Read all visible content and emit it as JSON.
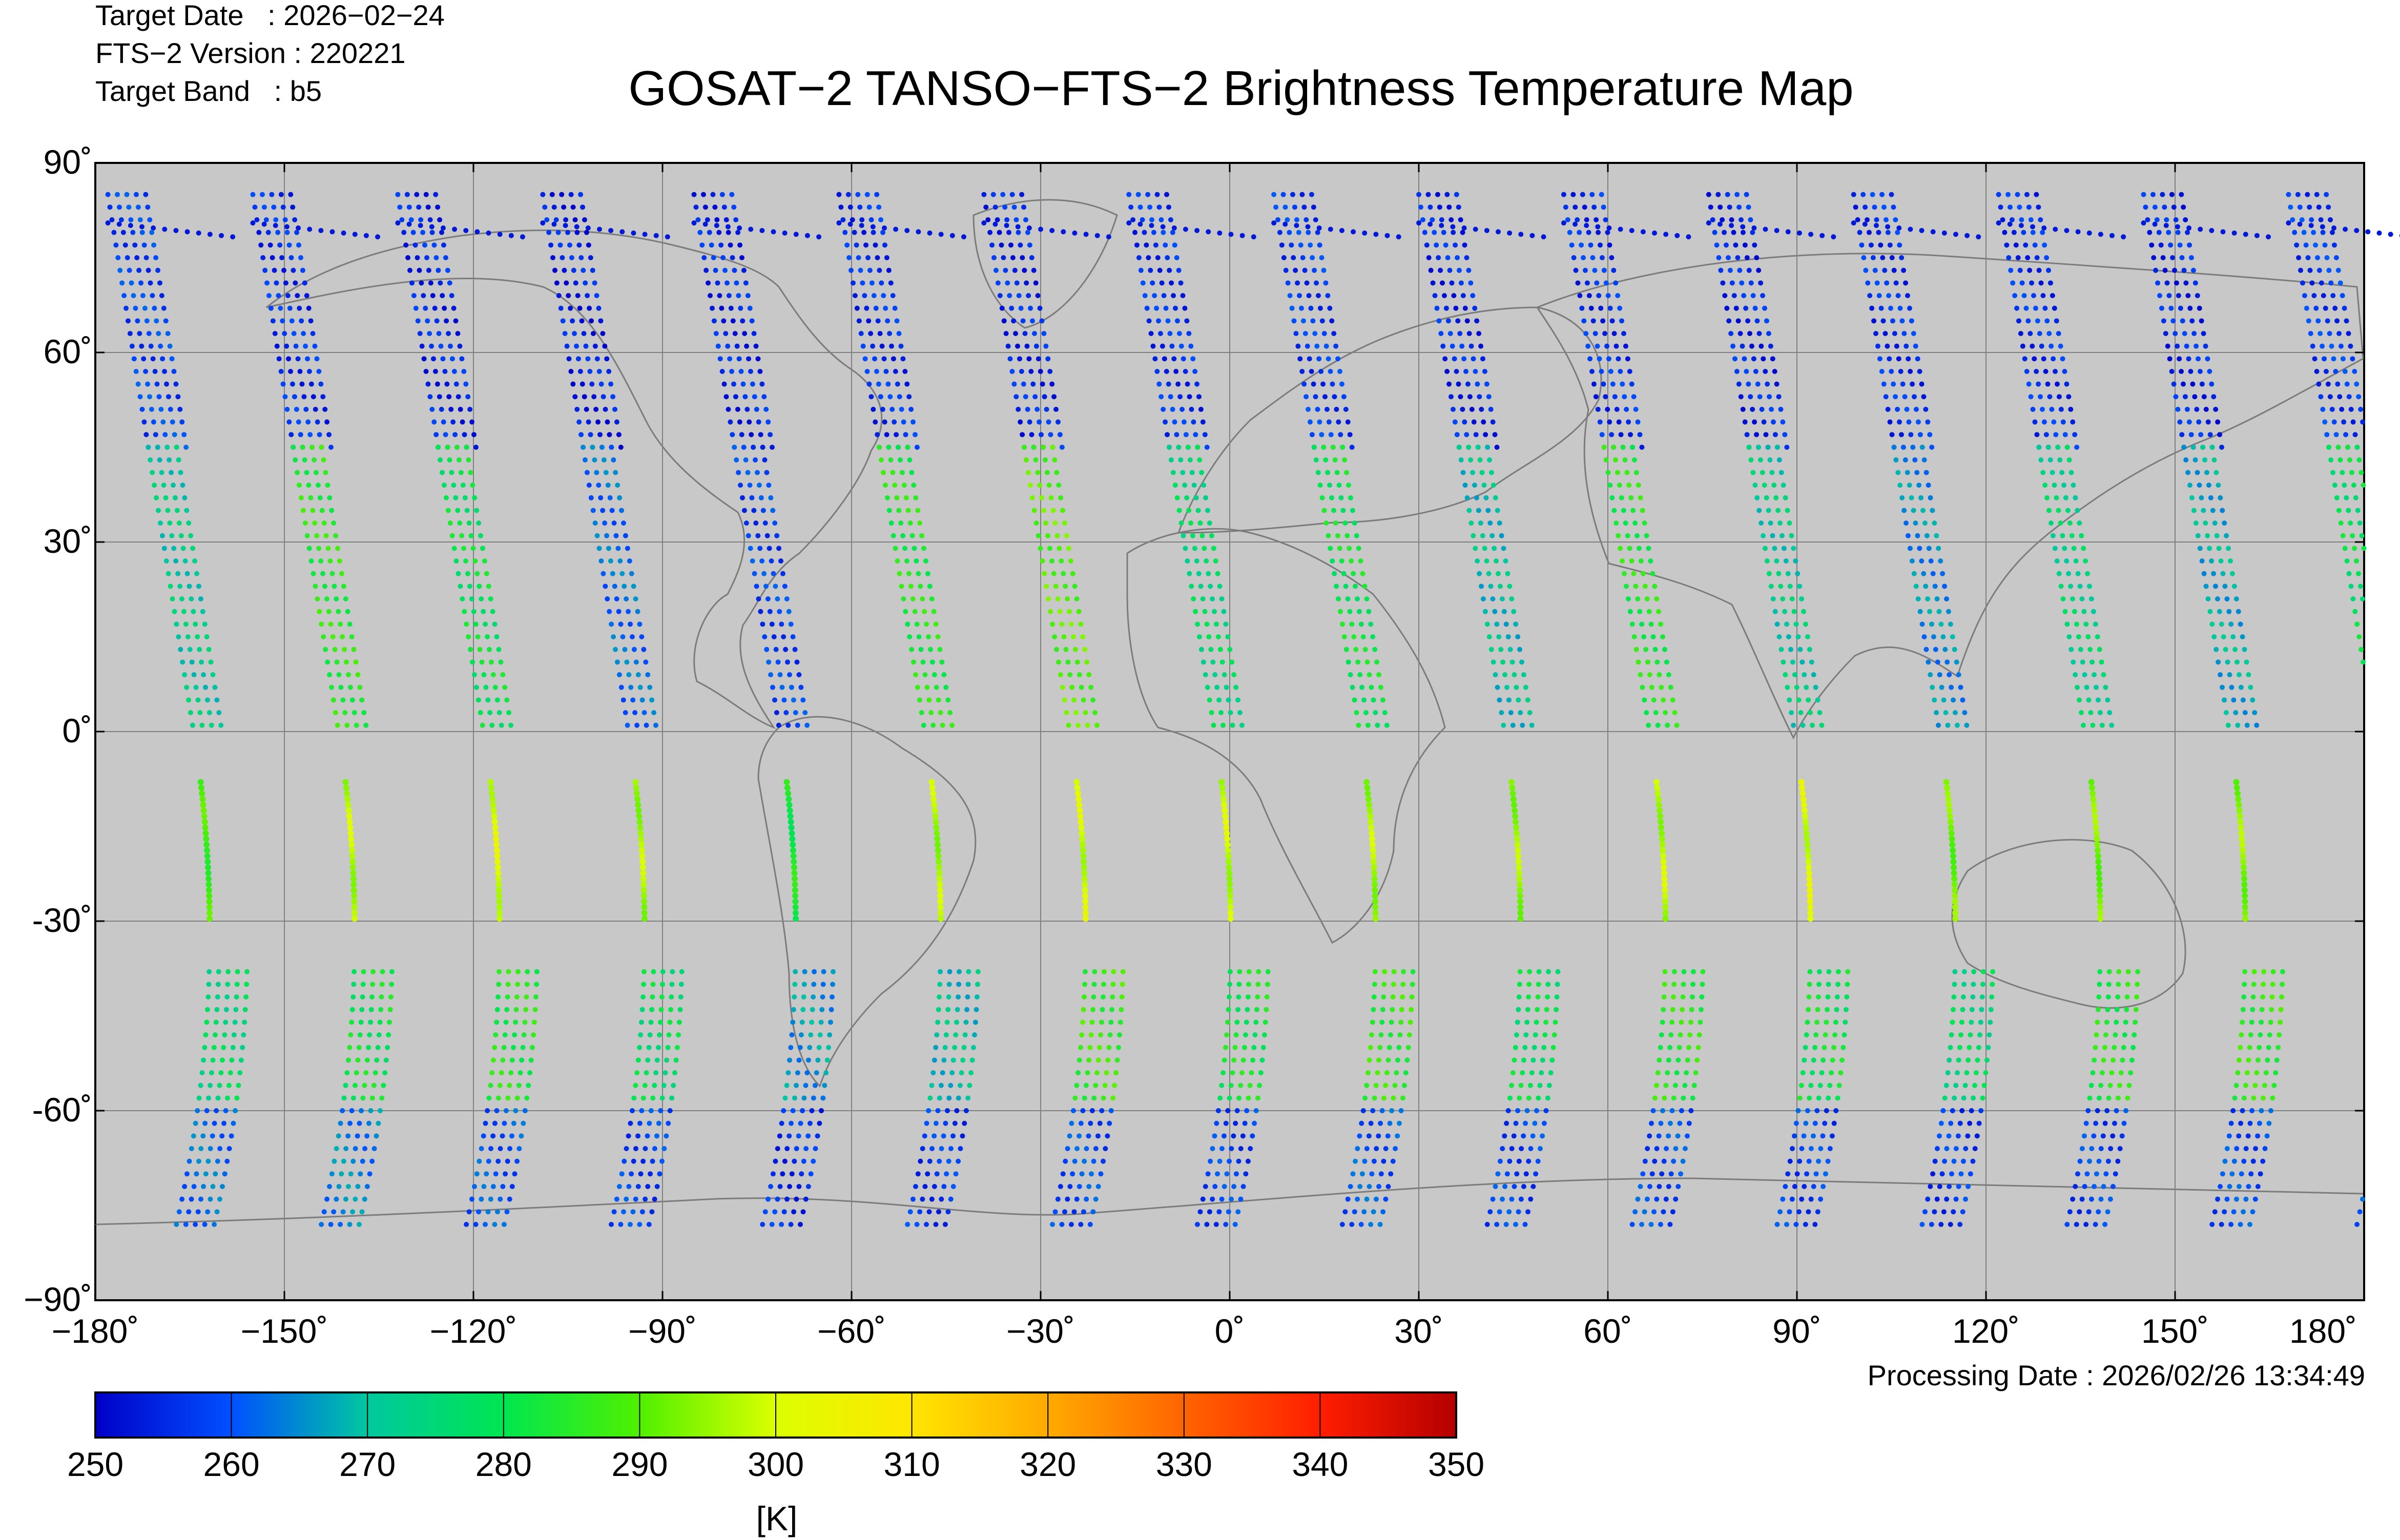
{
  "header": {
    "target_date": "Target Date   : 2026−02−24",
    "fts_version": "FTS−2 Version : 220221",
    "target_band": "Target Band   : b5",
    "title": "GOSAT−2 TANSO−FTS−2 Brightness Temperature Map"
  },
  "map": {
    "background_color": "#c8c8c8",
    "lat_ticks": [
      "90˚",
      "60˚",
      "30˚",
      "0˚",
      "-30˚",
      "-60˚",
      "−90˚"
    ],
    "lon_ticks": [
      "−180˚",
      "−150˚",
      "−120˚",
      "−90˚",
      "−60˚",
      "−30˚",
      "0˚",
      "30˚",
      "60˚",
      "90˚",
      "120˚",
      "150˚",
      "180˚"
    ],
    "grid": true
  },
  "footer": {
    "processing_date": "Processing Date : 2026/02/26 13:34:49"
  },
  "colorbar": {
    "ticks": [
      "250",
      "260",
      "270",
      "280",
      "290",
      "300",
      "310",
      "320",
      "330",
      "340",
      "350"
    ],
    "unit": "[K]",
    "min": 250,
    "max": 350,
    "colors": [
      "#0000c8",
      "#0050ff",
      "#00c8a0",
      "#00e650",
      "#50f000",
      "#dcff00",
      "#ffe600",
      "#ffaa00",
      "#ff6400",
      "#ff1e00",
      "#b40000"
    ]
  },
  "chart_data": {
    "type": "scatter",
    "xlim": [
      -180,
      180
    ],
    "ylim": [
      -90,
      90
    ],
    "swath_start_longitudes": [
      -178,
      -155,
      -132,
      -109,
      -85,
      -62,
      -39,
      -16,
      7,
      30,
      53,
      76,
      99,
      122,
      145,
      168
    ],
    "swath_temperature_levels_K": [
      [
        258,
        272,
        288,
        276,
        262
      ],
      [
        256,
        285,
        297,
        281,
        264
      ],
      [
        255,
        280,
        300,
        284,
        260
      ],
      [
        254,
        262,
        296,
        278,
        258
      ],
      [
        255,
        258,
        283,
        266,
        256
      ],
      [
        256,
        284,
        296,
        270,
        257
      ],
      [
        255,
        290,
        299,
        287,
        259
      ],
      [
        256,
        276,
        298,
        282,
        258
      ],
      [
        257,
        281,
        296,
        286,
        260
      ],
      [
        255,
        270,
        295,
        279,
        258
      ],
      [
        256,
        284,
        297,
        285,
        259
      ],
      [
        255,
        272,
        300,
        281,
        258
      ],
      [
        256,
        265,
        292,
        276,
        257
      ],
      [
        256,
        274,
        293,
        284,
        258
      ],
      [
        255,
        268,
        294,
        286,
        259
      ],
      [
        257,
        279,
        297,
        280,
        262
      ]
    ]
  }
}
